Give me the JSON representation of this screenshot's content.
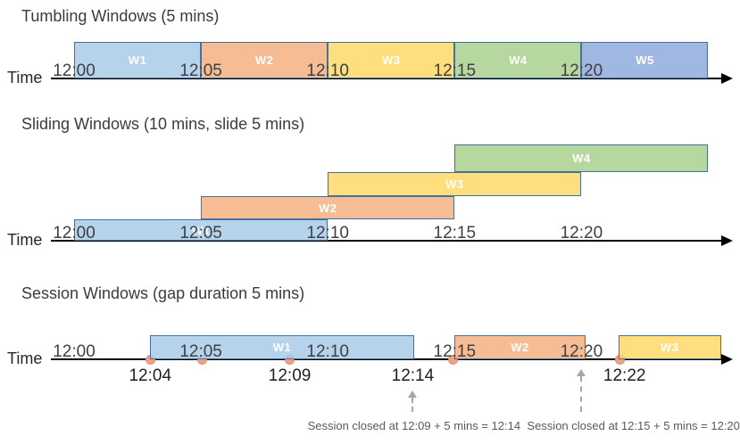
{
  "time_axis_label": "Time",
  "colors": {
    "axis": "#000000",
    "window_border": "#44719C",
    "tick_text": "#404040",
    "title_text": "#3b3b3b",
    "event_dot": "#F0A180",
    "annotation_text": "#595959",
    "dashed_arrow": "#a6a6a6",
    "window_label_text": "#ffffff",
    "blue": "#A9CBE9",
    "orange": "#F4B183",
    "yellow": "#FFD966",
    "green": "#A9D18E",
    "periwinkle": "#8FAADC"
  },
  "tick_labels": [
    {
      "min": 0,
      "label": "12:00"
    },
    {
      "min": 5,
      "label": "12:05"
    },
    {
      "min": 10,
      "label": "12:10"
    },
    {
      "min": 15,
      "label": "12:15"
    },
    {
      "min": 20,
      "label": "12:20"
    }
  ],
  "sections": [
    {
      "id": "tumbling",
      "title": "Tumbling Windows (5 mins)",
      "windows": [
        {
          "label": "W1",
          "start_min": 0,
          "end_min": 5,
          "color": "#A9CBE9",
          "row": 0
        },
        {
          "label": "W2",
          "start_min": 5,
          "end_min": 10,
          "color": "#F4B183",
          "row": 0
        },
        {
          "label": "W3",
          "start_min": 10,
          "end_min": 15,
          "color": "#FFD966",
          "row": 0
        },
        {
          "label": "W4",
          "start_min": 15,
          "end_min": 20,
          "color": "#A9D18E",
          "row": 0
        },
        {
          "label": "W5",
          "start_min": 20,
          "end_min": 25,
          "color": "#8FAADC",
          "row": 0
        }
      ]
    },
    {
      "id": "sliding",
      "title": "Sliding Windows (10 mins, slide 5 mins)",
      "windows": [
        {
          "label": "W1",
          "start_min": 0,
          "end_min": 10,
          "color": "#A9CBE9",
          "row": 0
        },
        {
          "label": "W2",
          "start_min": 5,
          "end_min": 15,
          "color": "#F4B183",
          "row": 1
        },
        {
          "label": "W3",
          "start_min": 10,
          "end_min": 20,
          "color": "#FFD966",
          "row": 2
        },
        {
          "label": "W4",
          "start_min": 15,
          "end_min": 25,
          "color": "#A9D18E",
          "row": 3
        }
      ]
    },
    {
      "id": "session",
      "title": "Session Windows (gap duration 5 mins)",
      "windows": [
        {
          "label": "W1",
          "start_min": 3.0,
          "end_min": 13.4,
          "color": "#A9CBE9",
          "row": 0
        },
        {
          "label": "W2",
          "start_min": 15.0,
          "end_min": 20.15,
          "color": "#F4B183",
          "row": 0
        },
        {
          "label": "W3",
          "start_min": 21.45,
          "end_min": 25.5,
          "color": "#FFD966",
          "row": 0
        }
      ],
      "events_min": [
        3.0,
        5.05,
        8.5,
        14.95,
        21.5
      ],
      "event_labels": [
        {
          "min": 3.0,
          "label": "12:04"
        },
        {
          "min": 8.5,
          "label": "12:09"
        },
        {
          "min": 13.35,
          "label": "12:14"
        },
        {
          "min": 21.7,
          "label": "12:22"
        }
      ],
      "callouts": [
        {
          "arrow_min": 13.35,
          "text_center_min": 13.4,
          "text": "Session closed at 12:09 + 5 mins = 12:14"
        },
        {
          "arrow_min": 20.0,
          "text_center_min": 22.05,
          "text": "Session closed at 12:15 + 5 mins = 12:20"
        }
      ]
    }
  ]
}
